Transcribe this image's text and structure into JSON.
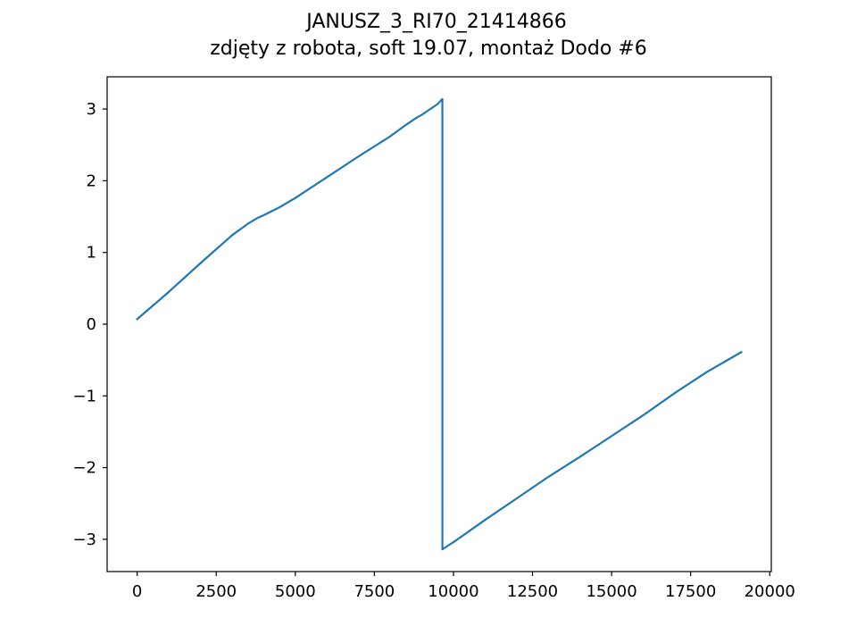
{
  "chart_data": {
    "type": "line",
    "title": "JANUSZ_3_RI70_21414866",
    "subtitle": "zdjęty z robota, soft 19.07, montaż Dodo #6",
    "xlabel": "",
    "ylabel": "",
    "xlim": [
      -950,
      20050
    ],
    "ylim": [
      -3.45,
      3.45
    ],
    "x_ticks": [
      0,
      2500,
      5000,
      7500,
      10000,
      12500,
      15000,
      17500,
      20000
    ],
    "x_tick_labels": [
      "0",
      "2500",
      "5000",
      "7500",
      "10000",
      "12500",
      "15000",
      "17500",
      "20000"
    ],
    "y_ticks": [
      -3,
      -2,
      -1,
      0,
      1,
      2,
      3
    ],
    "y_tick_labels": [
      "−3",
      "−2",
      "−1",
      "0",
      "1",
      "2",
      "3"
    ],
    "grid": false,
    "series": [
      {
        "name": "",
        "color": "#1f77b4",
        "x": [
          0,
          1000,
          2000,
          3000,
          3500,
          3800,
          4000,
          4500,
          5000,
          6000,
          7000,
          8000,
          8500,
          8800,
          9000,
          9500,
          9650,
          9651,
          10000,
          11000,
          12000,
          13000,
          14000,
          15000,
          16000,
          17000,
          18000,
          19100
        ],
        "y": [
          0.07,
          0.45,
          0.85,
          1.24,
          1.4,
          1.48,
          1.52,
          1.63,
          1.76,
          2.05,
          2.34,
          2.62,
          2.78,
          2.87,
          2.92,
          3.07,
          3.14,
          -3.14,
          -3.04,
          -2.73,
          -2.43,
          -2.13,
          -1.85,
          -1.56,
          -1.27,
          -0.96,
          -0.67,
          -0.39
        ]
      }
    ]
  }
}
